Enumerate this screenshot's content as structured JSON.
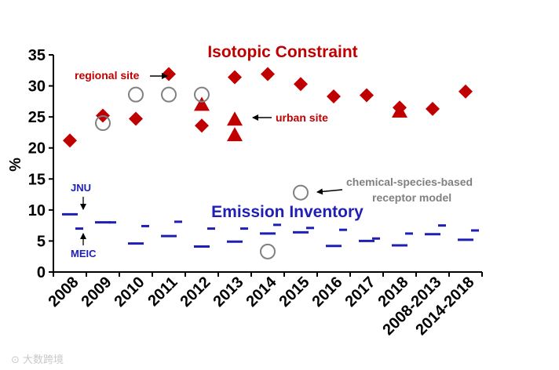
{
  "chart_data": {
    "type": "scatter",
    "title": "",
    "ylabel": "%",
    "ylim": [
      0,
      35
    ],
    "yticks": [
      "0",
      "5",
      "10",
      "15",
      "20",
      "25",
      "30",
      "35"
    ],
    "categories": [
      "2008",
      "2009",
      "2010",
      "2011",
      "2012",
      "2013",
      "2014",
      "2015",
      "2016",
      "2017",
      "2018",
      "2008-2013",
      "2014-2018"
    ],
    "grid": false,
    "panel_labels": {
      "isotopic": "Isotopic Constraint",
      "inventory": "Emission Inventory"
    },
    "annotations": {
      "regional": "regional site",
      "urban": "urban site",
      "cmb_line1": "chemical-species-based",
      "cmb_line2": "receptor model",
      "jnu": "JNU",
      "meic": "MEIC"
    },
    "series": [
      {
        "name": "regional site",
        "marker": "diamond",
        "color": "#c00000",
        "points": [
          {
            "x": "2008",
            "y": 21.2
          },
          {
            "x": "2009",
            "y": 25.2
          },
          {
            "x": "2010",
            "y": 24.7
          },
          {
            "x": "2011",
            "y": 31.9
          },
          {
            "x": "2012",
            "y": 23.6
          },
          {
            "x": "2013",
            "y": 31.4
          },
          {
            "x": "2014",
            "y": 31.9
          },
          {
            "x": "2015",
            "y": 30.3
          },
          {
            "x": "2016",
            "y": 28.3
          },
          {
            "x": "2017",
            "y": 28.5
          },
          {
            "x": "2018",
            "y": 26.5
          },
          {
            "x": "2008-2013",
            "y": 26.3
          },
          {
            "x": "2014-2018",
            "y": 29.1
          }
        ]
      },
      {
        "name": "urban site",
        "marker": "triangle",
        "color": "#c00000",
        "points": [
          {
            "x": "2012",
            "y": 27.0
          },
          {
            "x": "2013",
            "y": 24.6
          },
          {
            "x": "2013",
            "y": 22.1
          },
          {
            "x": "2018",
            "y": 25.9
          }
        ]
      },
      {
        "name": "chemical-species-based receptor model",
        "marker": "circle",
        "color": "#808080",
        "points": [
          {
            "x": "2009",
            "y": 24.0
          },
          {
            "x": "2010",
            "y": 28.6
          },
          {
            "x": "2011",
            "y": 28.6
          },
          {
            "x": "2012",
            "y": 28.6
          },
          {
            "x": "2014",
            "y": 3.3
          },
          {
            "x": "2015",
            "y": 12.8
          }
        ]
      },
      {
        "name": "JNU",
        "marker": "long-dash",
        "color": "#1f1fb4",
        "points": [
          {
            "x": "2008",
            "y": 9.3
          },
          {
            "x": "2009",
            "y": 8.0
          },
          {
            "x": "2010",
            "y": 4.6
          },
          {
            "x": "2011",
            "y": 5.8
          },
          {
            "x": "2012",
            "y": 4.1
          },
          {
            "x": "2013",
            "y": 4.9
          },
          {
            "x": "2014",
            "y": 6.2
          },
          {
            "x": "2015",
            "y": 6.4
          },
          {
            "x": "2016",
            "y": 4.2
          },
          {
            "x": "2017",
            "y": 5.0
          },
          {
            "x": "2018",
            "y": 4.3
          },
          {
            "x": "2008-2013",
            "y": 6.1
          },
          {
            "x": "2014-2018",
            "y": 5.2
          }
        ]
      },
      {
        "name": "MEIC",
        "marker": "short-dash",
        "color": "#1f1fb4",
        "points": [
          {
            "x": "2008",
            "y": 7.0
          },
          {
            "x": "2009",
            "y": 8.0
          },
          {
            "x": "2010",
            "y": 7.4
          },
          {
            "x": "2011",
            "y": 8.1
          },
          {
            "x": "2012",
            "y": 7.0
          },
          {
            "x": "2013",
            "y": 7.0
          },
          {
            "x": "2014",
            "y": 7.6
          },
          {
            "x": "2015",
            "y": 7.1
          },
          {
            "x": "2016",
            "y": 6.8
          },
          {
            "x": "2017",
            "y": 5.4
          },
          {
            "x": "2018",
            "y": 6.2
          },
          {
            "x": "2008-2013",
            "y": 7.5
          },
          {
            "x": "2014-2018",
            "y": 6.7
          }
        ]
      }
    ]
  },
  "watermark": "大数跨境"
}
